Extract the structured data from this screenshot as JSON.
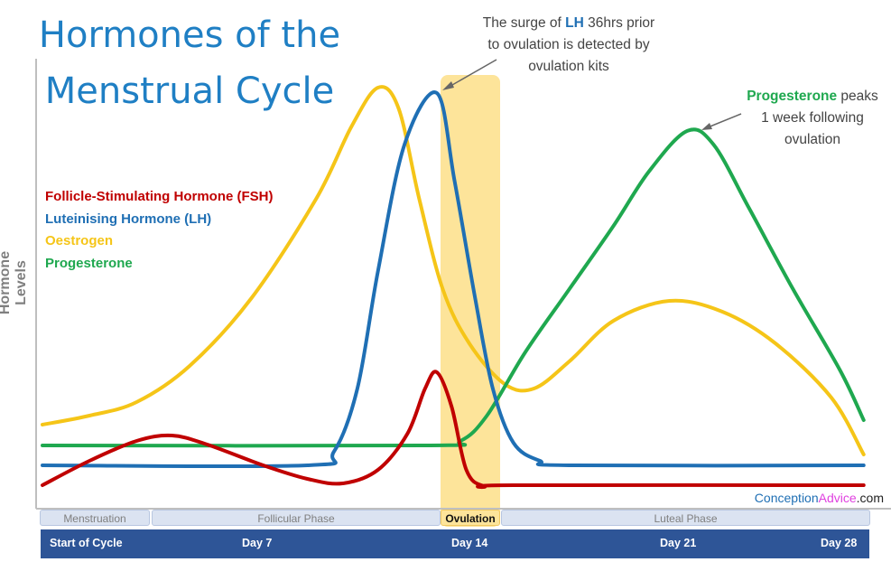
{
  "title": "Hormones of the Menstrual Cycle",
  "title_lines": [
    "Hormones of the",
    "Menstrual Cycle"
  ],
  "colors": {
    "fsh": "#c00000",
    "lh": "#1f6fb4",
    "oestrogen": "#f5c518",
    "progesterone": "#1fa84f",
    "ovulation_band": "#fde49a",
    "day_bar": "#2e5597",
    "title": "#1f7fc4"
  },
  "annotations": {
    "lh": {
      "pre": "The surge of ",
      "bold": "LH",
      "post": " 36hrs prior",
      "line2": "to ovulation is detected by",
      "line3": "ovulation kits"
    },
    "progesterone": {
      "bold": "Progesterone",
      "post": " peaks",
      "line2": "1 week following",
      "line3": "ovulation"
    }
  },
  "logo": {
    "part1": "Conception",
    "part2": "Advice",
    "part3": ".com"
  },
  "phases": [
    "Menstruation",
    "Follicular Phase",
    "Ovulation",
    "Luteal Phase"
  ],
  "days": [
    "Start of Cycle",
    "Day 7",
    "Day 14",
    "Day 21",
    "Day 28"
  ],
  "chart_data": {
    "type": "line",
    "title": "Hormones of the Menstrual Cycle",
    "xlabel": "",
    "ylabel": "Hormone Levels",
    "xlim": [
      0,
      28
    ],
    "ylim": [
      0,
      100
    ],
    "grid": false,
    "legend": "left",
    "ovulation_range": [
      13.6,
      15.6
    ],
    "series": [
      {
        "name": "Follicle-Stimulating Hormone (FSH)",
        "key": "fsh",
        "points": [
          [
            0,
            5.6
          ],
          [
            1.6,
            11
          ],
          [
            3.2,
            15.4
          ],
          [
            4.4,
            16.6
          ],
          [
            5.6,
            14.6
          ],
          [
            7.5,
            10
          ],
          [
            9,
            7
          ],
          [
            10.2,
            6
          ],
          [
            11.4,
            9
          ],
          [
            12.4,
            17
          ],
          [
            13,
            27
          ],
          [
            13.4,
            30.6
          ],
          [
            13.9,
            23
          ],
          [
            14.4,
            9
          ],
          [
            15,
            5.4
          ],
          [
            16,
            5.6
          ],
          [
            27.9,
            5.6
          ]
        ]
      },
      {
        "name": "Luteinising Hormone (LH)",
        "key": "lh",
        "points": [
          [
            0,
            10
          ],
          [
            9,
            10
          ],
          [
            9.9,
            13
          ],
          [
            10.7,
            27
          ],
          [
            11.4,
            53
          ],
          [
            12.3,
            81
          ],
          [
            13.4,
            92.4
          ],
          [
            14,
            73
          ],
          [
            14.7,
            47
          ],
          [
            15.3,
            27
          ],
          [
            16,
            15
          ],
          [
            16.9,
            11
          ],
          [
            17.9,
            10
          ],
          [
            27.9,
            10
          ]
        ]
      },
      {
        "name": "Oestrogen",
        "key": "oestrogen",
        "points": [
          [
            0,
            19
          ],
          [
            1.6,
            21
          ],
          [
            3.2,
            24
          ],
          [
            5,
            32
          ],
          [
            7.1,
            47
          ],
          [
            9.3,
            69
          ],
          [
            10.5,
            85
          ],
          [
            11.4,
            93.6
          ],
          [
            12.1,
            89
          ],
          [
            12.8,
            69
          ],
          [
            13.6,
            49
          ],
          [
            14.5,
            37
          ],
          [
            15.7,
            28
          ],
          [
            16.7,
            27
          ],
          [
            17.9,
            33
          ],
          [
            19.4,
            42
          ],
          [
            21.3,
            46.4
          ],
          [
            23.1,
            44
          ],
          [
            24.9,
            37
          ],
          [
            26.8,
            25
          ],
          [
            27.9,
            12.4
          ]
        ]
      },
      {
        "name": "Progesterone",
        "key": "progesterone",
        "points": [
          [
            0,
            14.4
          ],
          [
            13,
            14.4
          ],
          [
            14.2,
            15.4
          ],
          [
            15.1,
            21
          ],
          [
            16.4,
            35
          ],
          [
            17.9,
            49
          ],
          [
            19.4,
            63
          ],
          [
            20.6,
            75
          ],
          [
            21.9,
            84
          ],
          [
            22.8,
            81
          ],
          [
            24,
            67
          ],
          [
            25.5,
            49
          ],
          [
            27.1,
            31
          ],
          [
            27.9,
            20
          ]
        ]
      }
    ]
  }
}
